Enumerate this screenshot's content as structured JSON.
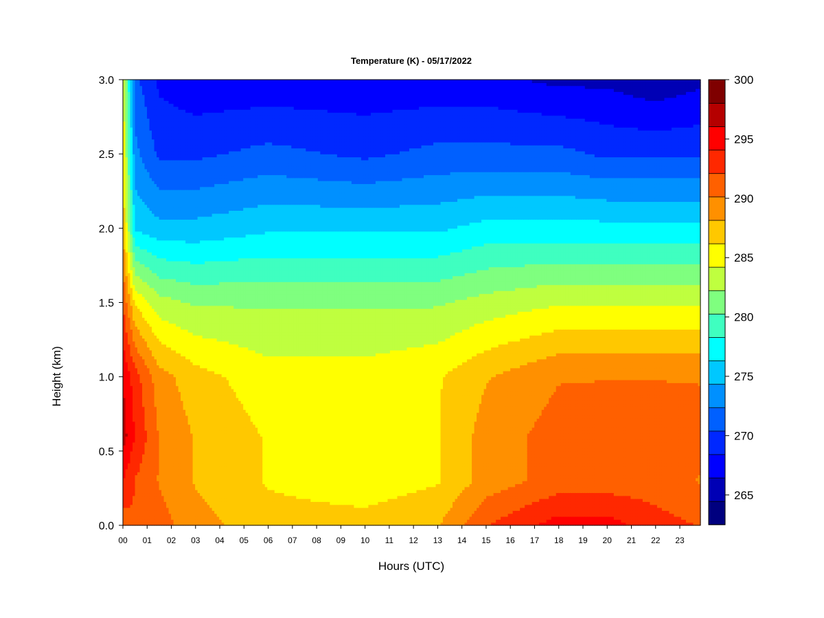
{
  "chart_data": {
    "type": "heatmap",
    "title": "Temperature (K) - 05/17/2022",
    "xlabel": "Hours (UTC)",
    "ylabel": "Height (km)",
    "x_ticks": [
      "00",
      "01",
      "02",
      "03",
      "04",
      "05",
      "06",
      "07",
      "08",
      "09",
      "10",
      "11",
      "12",
      "13",
      "14",
      "15",
      "16",
      "17",
      "18",
      "19",
      "20",
      "21",
      "22",
      "23"
    ],
    "y_ticks": [
      "0.0",
      "0.5",
      "1.0",
      "1.5",
      "2.0",
      "2.5",
      "3.0"
    ],
    "xlim": [
      0,
      23.85
    ],
    "ylim": [
      0,
      3.0
    ],
    "colorbar": {
      "ticks": [
        "265",
        "270",
        "275",
        "280",
        "285",
        "290",
        "295",
        "300"
      ],
      "vmin": 262.5,
      "vmax": 300,
      "colors": [
        "#00007f",
        "#0000b5",
        "#0000ff",
        "#0028ff",
        "#0060ff",
        "#0090ff",
        "#00c8ff",
        "#00ffff",
        "#3fffc0",
        "#7fff7f",
        "#bfff3f",
        "#ffff00",
        "#ffc800",
        "#ff9000",
        "#ff6000",
        "#ff2800",
        "#ff0000",
        "#b50000",
        "#7f0000"
      ]
    },
    "profiles": [
      {
        "hour": 0.0,
        "z": [
          0,
          0.3,
          0.6,
          1.0,
          1.5,
          2.0,
          2.5,
          3.0
        ],
        "t": [
          291,
          294,
          297,
          296,
          292,
          288,
          286,
          285
        ]
      },
      {
        "hour": 0.5,
        "z": [
          0,
          0.3,
          0.6,
          1.0,
          1.5,
          2.0,
          2.5,
          3.0
        ],
        "t": [
          292,
          292,
          294,
          293,
          286,
          276,
          273,
          271
        ]
      },
      {
        "hour": 1.5,
        "z": [
          0,
          0.3,
          0.6,
          1.0,
          1.5,
          2.0,
          2.5,
          3.0
        ],
        "t": [
          291,
          290,
          290,
          289,
          283,
          275,
          270,
          268
        ]
      },
      {
        "hour": 3.0,
        "z": [
          0,
          0.3,
          0.6,
          1.0,
          1.5,
          2.0,
          2.5,
          3.0
        ],
        "t": [
          289,
          288,
          288,
          287,
          282,
          275,
          270,
          267
        ]
      },
      {
        "hour": 6.0,
        "z": [
          0,
          0.3,
          0.6,
          1.0,
          1.5,
          2.0,
          2.5,
          3.0
        ],
        "t": [
          287,
          286,
          286,
          285,
          282,
          276,
          271,
          267
        ]
      },
      {
        "hour": 10.0,
        "z": [
          0,
          0.3,
          0.6,
          1.0,
          1.5,
          2.0,
          2.5,
          3.0
        ],
        "t": [
          287,
          285,
          285,
          285,
          282,
          276,
          270,
          267
        ]
      },
      {
        "hour": 13.0,
        "z": [
          0,
          0.3,
          0.6,
          1.0,
          1.5,
          2.0,
          2.5,
          3.0
        ],
        "t": [
          288,
          286,
          286,
          286,
          282,
          276,
          271,
          267
        ]
      },
      {
        "hour": 15.0,
        "z": [
          0,
          0.3,
          0.6,
          1.0,
          1.5,
          2.0,
          2.5,
          3.0
        ],
        "t": [
          292,
          289,
          289,
          288,
          283,
          277,
          271,
          267
        ]
      },
      {
        "hour": 18.0,
        "z": [
          0,
          0.3,
          0.6,
          1.0,
          1.5,
          2.0,
          2.5,
          3.0
        ],
        "t": [
          295,
          291,
          291,
          290,
          284,
          277,
          271,
          266
        ]
      },
      {
        "hour": 20.0,
        "z": [
          0,
          0.3,
          0.6,
          1.0,
          1.5,
          2.0,
          2.5,
          3.0
        ],
        "t": [
          295,
          291,
          292,
          290,
          284,
          277,
          270,
          266
        ]
      },
      {
        "hour": 22.0,
        "z": [
          0,
          0.3,
          0.6,
          1.0,
          1.5,
          2.0,
          2.5,
          3.0
        ],
        "t": [
          293,
          291,
          292,
          290,
          284,
          277,
          270,
          265
        ]
      },
      {
        "hour": 23.85,
        "z": [
          0,
          0.3,
          0.6,
          1.0,
          1.5,
          2.0,
          2.5,
          3.0
        ],
        "t": [
          292,
          290,
          291,
          290,
          284,
          277,
          270,
          266
        ]
      }
    ]
  }
}
